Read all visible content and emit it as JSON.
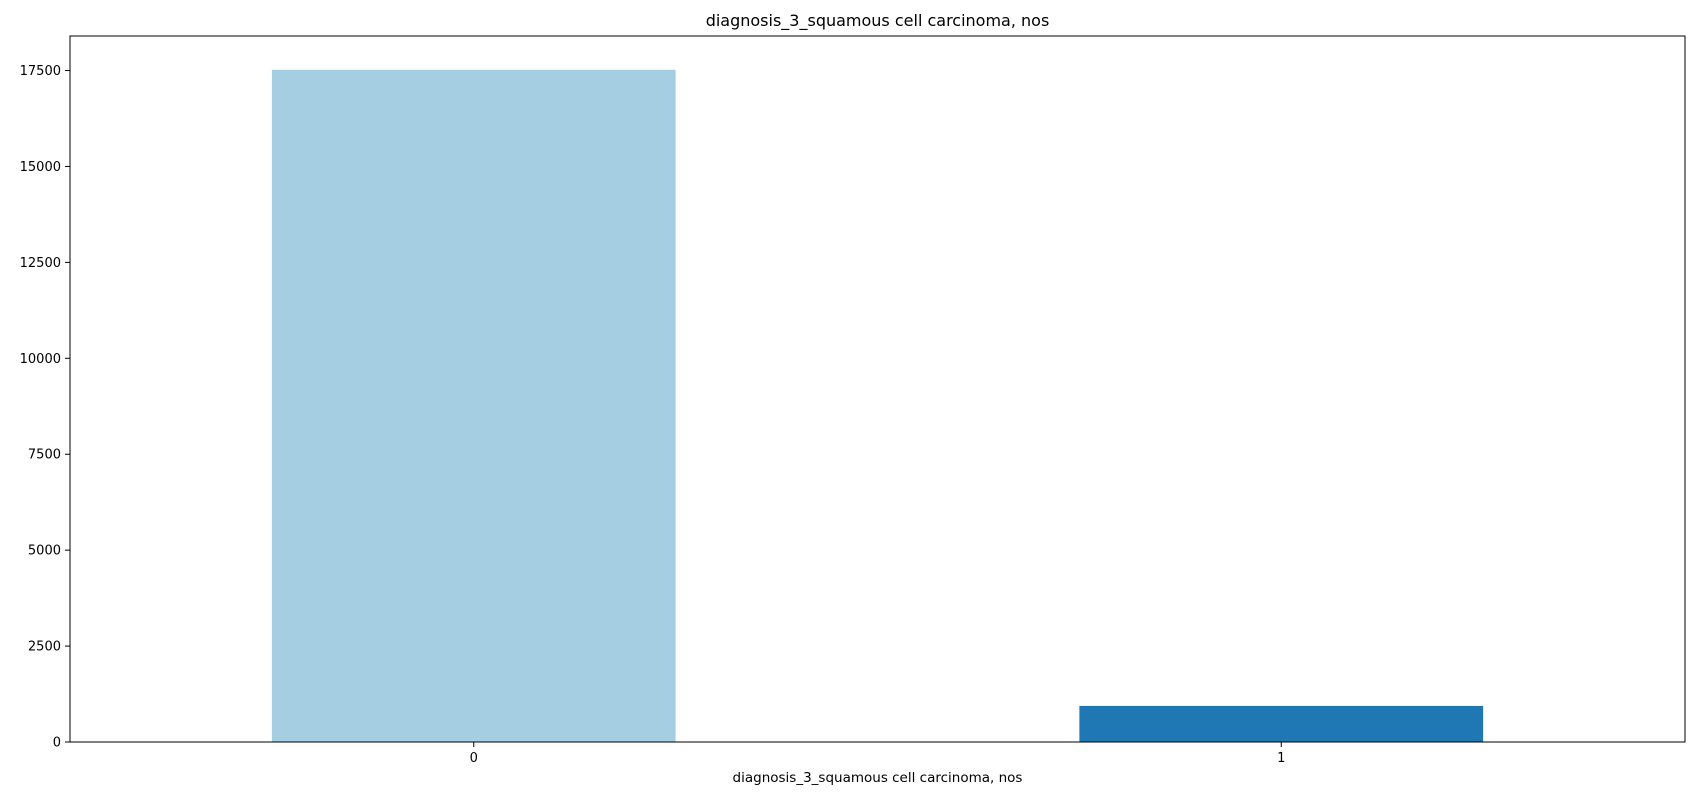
{
  "chart_data": {
    "type": "bar",
    "title": "diagnosis_3_squamous cell carcinoma, nos",
    "xlabel": "diagnosis_3_squamous cell carcinoma, nos",
    "ylabel": "",
    "categories": [
      "0",
      "1"
    ],
    "values": [
      17520,
      940
    ],
    "colors": [
      "#a6cee3",
      "#1f78b4"
    ],
    "ylim": [
      0,
      18400
    ],
    "yticks": [
      0,
      2500,
      5000,
      7500,
      10000,
      12500,
      15000,
      17500
    ],
    "grid": false,
    "legend": "none"
  }
}
